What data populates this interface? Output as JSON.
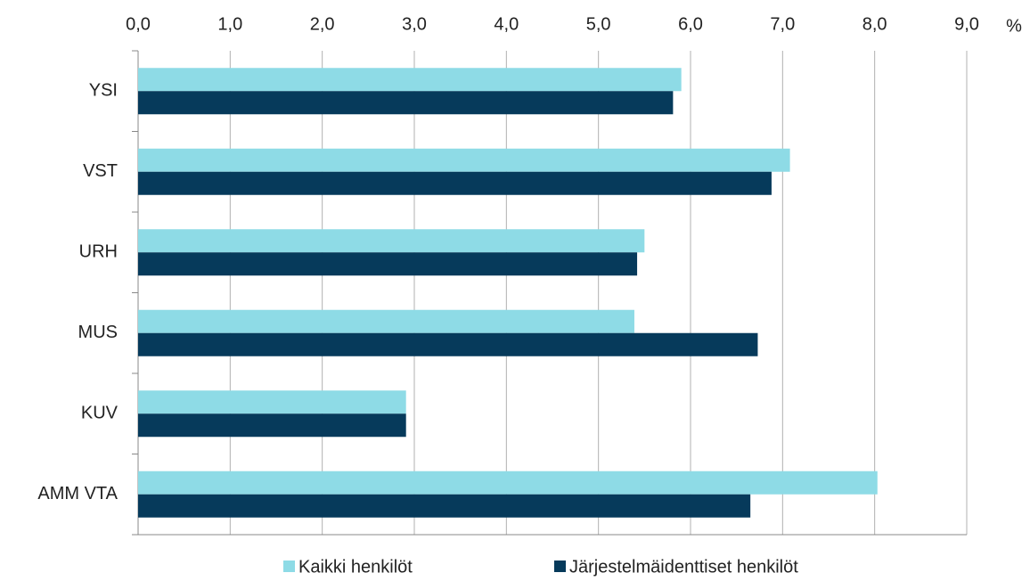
{
  "chart_data": {
    "type": "bar",
    "orientation": "horizontal",
    "categories": [
      "YSI",
      "VST",
      "URH",
      "MUS",
      "KUV",
      "AMM VTA"
    ],
    "series": [
      {
        "name": "Kaikki henkilöt",
        "color": "#8edbe6",
        "values": [
          5.9,
          7.08,
          5.5,
          5.39,
          2.91,
          8.03
        ]
      },
      {
        "name": "Järjestelmäidenttiset henkilöt",
        "color": "#063a5b",
        "values": [
          5.81,
          6.88,
          5.42,
          6.73,
          2.91,
          6.65
        ]
      }
    ],
    "xlabel": "%",
    "xlim": [
      0,
      9
    ],
    "xticks": [
      {
        "value": 0,
        "label": "0,0"
      },
      {
        "value": 1,
        "label": "1,0"
      },
      {
        "value": 2,
        "label": "2,0"
      },
      {
        "value": 3,
        "label": "3,0"
      },
      {
        "value": 4,
        "label": "4,0"
      },
      {
        "value": 5,
        "label": "5,0"
      },
      {
        "value": 6,
        "label": "6,0"
      },
      {
        "value": 7,
        "label": "7,0"
      },
      {
        "value": 8,
        "label": "8,0"
      },
      {
        "value": 9,
        "label": "9,0"
      }
    ],
    "grid": true,
    "legend": "bottom"
  }
}
